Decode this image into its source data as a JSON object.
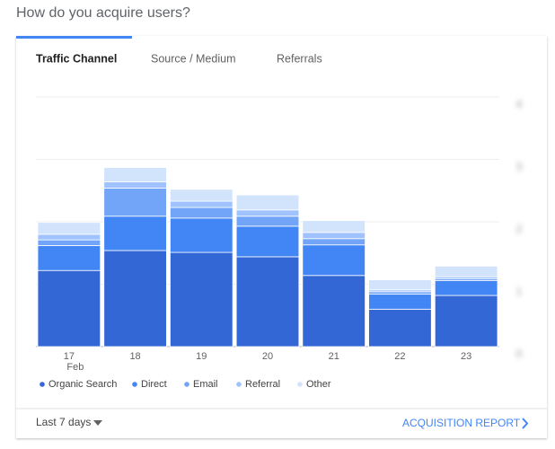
{
  "header": {
    "title": "How do you acquire users?"
  },
  "tabs": [
    "Traffic Channel",
    "Source / Medium",
    "Referrals"
  ],
  "chart_data": {
    "type": "stacked-bar",
    "categories": [
      "17",
      "18",
      "19",
      "20",
      "21",
      "22",
      "23"
    ],
    "month_label": "Feb",
    "series": [
      {
        "name": "Organic Search",
        "color": "#3367d6",
        "values": [
          1.22,
          1.54,
          1.51,
          1.44,
          1.14,
          0.6,
          0.82
        ]
      },
      {
        "name": "Direct",
        "color": "#4285f4",
        "values": [
          0.4,
          0.55,
          0.55,
          0.49,
          0.49,
          0.24,
          0.24
        ]
      },
      {
        "name": "Email",
        "color": "#72a4f7",
        "values": [
          0.09,
          0.45,
          0.17,
          0.16,
          0.1,
          0.04,
          0.03
        ]
      },
      {
        "name": "Referral",
        "color": "#a0c3ff",
        "values": [
          0.09,
          0.1,
          0.1,
          0.1,
          0.1,
          0.03,
          0.03
        ]
      },
      {
        "name": "Other",
        "color": "#d2e3fc",
        "values": [
          0.19,
          0.23,
          0.19,
          0.24,
          0.19,
          0.16,
          0.17
        ]
      }
    ],
    "ylim": [
      0,
      4
    ],
    "yticks": [
      0,
      1,
      2,
      3,
      4
    ],
    "grid": true
  },
  "footer": {
    "range": "Last 7 days",
    "link": "ACQUISITION REPORT"
  }
}
